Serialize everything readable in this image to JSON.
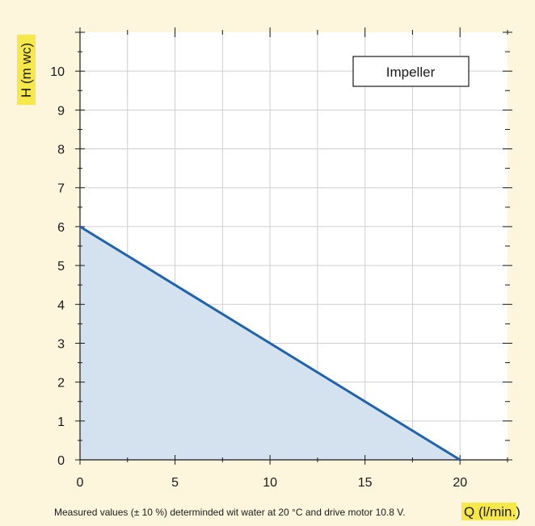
{
  "colors": {
    "background": "#fdf6dc",
    "plot_background": "#ffffff",
    "grid": "#cfcfcf",
    "axis": "#1a1a1a",
    "line": "#1f63ad",
    "fill": "#d4e2ef",
    "label_highlight": "#f7e84a"
  },
  "footnote": "Measured values (± 10 %) determinded wit water at 20 °C and drive motor 10.8 V.",
  "chart_data": {
    "type": "area",
    "title": "",
    "xlabel": "Q (l/min.)",
    "ylabel": "H (m wc)",
    "legend": [
      "Impeller"
    ],
    "legend_position": "top-right",
    "xlim": [
      0,
      22.5
    ],
    "ylim": [
      0,
      11
    ],
    "xticks": [
      0,
      5,
      10,
      15,
      20
    ],
    "yticks": [
      0,
      1,
      2,
      3,
      4,
      5,
      6,
      7,
      8,
      9,
      10
    ],
    "grid": true,
    "series": [
      {
        "name": "Impeller",
        "x": [
          0,
          20
        ],
        "y": [
          6,
          0
        ]
      }
    ]
  }
}
